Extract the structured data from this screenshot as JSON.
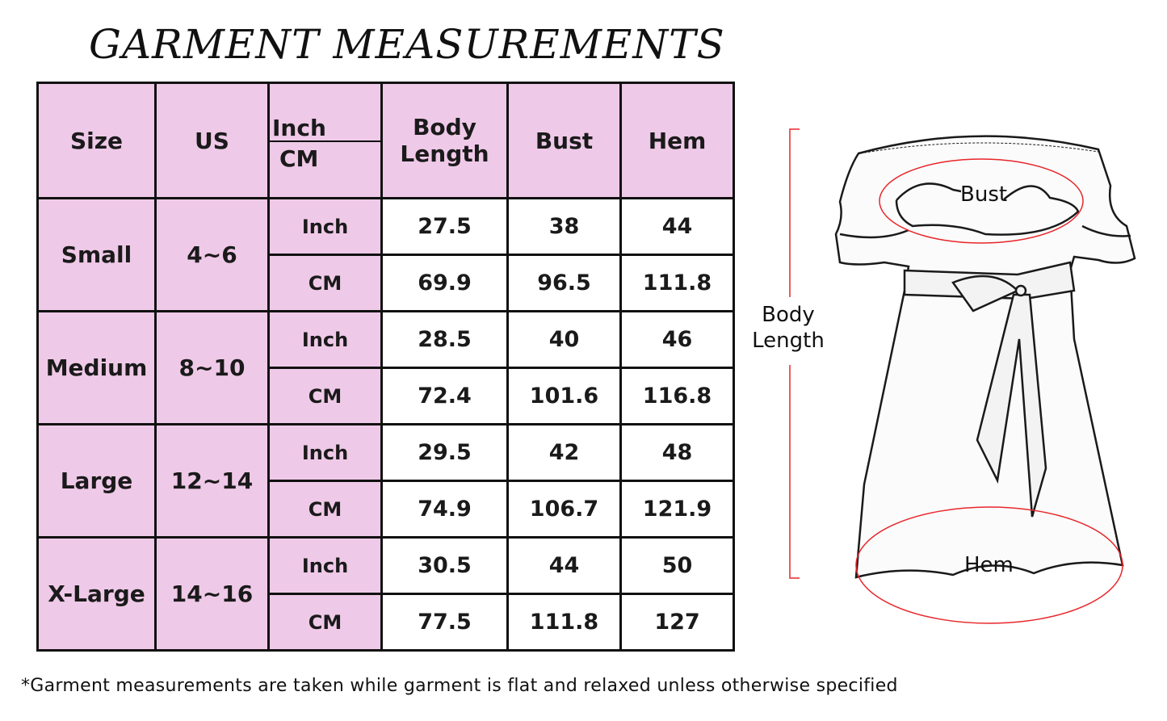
{
  "title": "GARMENT MEASUREMENTS",
  "table": {
    "headers": {
      "size": "Size",
      "us": "US",
      "unit_top": "Inch",
      "unit_bottom": "CM",
      "body_length": "Body Length",
      "bust": "Bust",
      "hem": "Hem"
    },
    "rows": [
      {
        "size": "Small",
        "us": "4~6",
        "inch": {
          "unit": "Inch",
          "body_length": "27.5",
          "bust": "38",
          "hem": "44"
        },
        "cm": {
          "unit": "CM",
          "body_length": "69.9",
          "bust": "96.5",
          "hem": "111.8"
        }
      },
      {
        "size": "Medium",
        "us": "8~10",
        "inch": {
          "unit": "Inch",
          "body_length": "28.5",
          "bust": "40",
          "hem": "46"
        },
        "cm": {
          "unit": "CM",
          "body_length": "72.4",
          "bust": "101.6",
          "hem": "116.8"
        }
      },
      {
        "size": "Large",
        "us": "12~14",
        "inch": {
          "unit": "Inch",
          "body_length": "29.5",
          "bust": "42",
          "hem": "48"
        },
        "cm": {
          "unit": "CM",
          "body_length": "74.9",
          "bust": "106.7",
          "hem": "121.9"
        }
      },
      {
        "size": "X-Large",
        "us": "14~16",
        "inch": {
          "unit": "Inch",
          "body_length": "30.5",
          "bust": "44",
          "hem": "50"
        },
        "cm": {
          "unit": "CM",
          "body_length": "77.5",
          "bust": "111.8",
          "hem": "127"
        }
      }
    ]
  },
  "diagram": {
    "bust_label": "Bust",
    "hem_label": "Hem",
    "body_length_label": "Body Length",
    "marker_color": "#e8262a"
  },
  "colors": {
    "header_fill": "#efc9e8"
  },
  "footnote": "*Garment measurements are taken while garment is flat and relaxed unless otherwise specified"
}
